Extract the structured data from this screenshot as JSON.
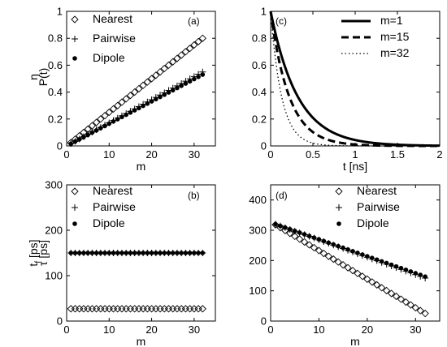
{
  "chart_data": [
    {
      "panel": "(a)",
      "type": "scatter",
      "xlabel": "m",
      "ylabel": "η",
      "xlim": [
        0,
        35
      ],
      "ylim": [
        0,
        1
      ],
      "xticks": [
        0,
        10,
        20,
        30
      ],
      "yticks": [
        0,
        0.2,
        0.4,
        0.6,
        0.8,
        1
      ],
      "ytick_labels": [
        "0",
        "0.2",
        "0.4",
        "0.6",
        "0.8",
        "1"
      ],
      "legend_placement": "top-left",
      "series": [
        {
          "name": "Nearest",
          "marker": "diamond",
          "x_start": 1,
          "x_end": 32,
          "y_start": 0.025,
          "y_end": 0.8
        },
        {
          "name": "Pairwise",
          "marker": "plus",
          "x_start": 1,
          "x_end": 32,
          "y_start": 0.017,
          "y_end": 0.55
        },
        {
          "name": "Dipole",
          "marker": "dot",
          "x_start": 1,
          "x_end": 32,
          "y_start": 0.016,
          "y_end": 0.53
        }
      ]
    },
    {
      "panel": "(c)",
      "type": "line",
      "xlabel": "t [ns]",
      "ylabel": "P(t)",
      "xlim": [
        0,
        2
      ],
      "ylim": [
        0,
        1
      ],
      "xticks": [
        0,
        0.5,
        1,
        1.5,
        2
      ],
      "xtick_labels": [
        "0",
        "0.5",
        "1",
        "1.5",
        "2"
      ],
      "yticks": [
        0,
        0.2,
        0.4,
        0.6,
        0.8,
        1
      ],
      "ytick_labels": [
        "0",
        "0.2",
        "0.4",
        "0.6",
        "0.8",
        "1"
      ],
      "legend_placement": "top-right",
      "series": [
        {
          "name": "m=1",
          "style": "solid",
          "decay_time_ns": 0.32
        },
        {
          "name": "m=15",
          "style": "dashed",
          "decay_time_ns": 0.22
        },
        {
          "name": "m=32",
          "style": "dotted",
          "decay_time_ns": 0.13
        }
      ]
    },
    {
      "panel": "(b)",
      "type": "scatter",
      "xlabel": "m",
      "ylabel": "t",
      "ylabel_sub": "f",
      "ylabel_unit": " [ps]",
      "xlim": [
        0,
        35
      ],
      "ylim": [
        0,
        300
      ],
      "xticks": [
        0,
        10,
        20,
        30
      ],
      "yticks": [
        0,
        100,
        200,
        300
      ],
      "legend_placement": "top-left",
      "series": [
        {
          "name": "Nearest",
          "marker": "diamond",
          "x_start": 1,
          "x_end": 32,
          "y_start": 27,
          "y_end": 27
        },
        {
          "name": "Pairwise",
          "marker": "plus",
          "x_start": 1,
          "x_end": 32,
          "y_start": 150,
          "y_end": 150
        },
        {
          "name": "Dipole",
          "marker": "dot",
          "x_start": 1,
          "x_end": 32,
          "y_start": 150,
          "y_end": 150
        }
      ]
    },
    {
      "panel": "(d)",
      "type": "scatter",
      "xlabel": "m",
      "ylabel": "τ [ps]",
      "xlim": [
        0,
        35
      ],
      "ylim": [
        0,
        450
      ],
      "xticks": [
        0,
        10,
        20,
        30
      ],
      "yticks": [
        0,
        100,
        200,
        300,
        400
      ],
      "legend_placement": "top-right",
      "series": [
        {
          "name": "Nearest",
          "marker": "diamond",
          "x_start": 1,
          "x_end": 32,
          "y_start": 318,
          "y_end": 25
        },
        {
          "name": "Pairwise",
          "marker": "plus",
          "x_start": 1,
          "x_end": 32,
          "y_start": 320,
          "y_end": 142
        },
        {
          "name": "Dipole",
          "marker": "dot",
          "x_start": 1,
          "x_end": 32,
          "y_start": 320,
          "y_end": 147
        }
      ]
    }
  ]
}
